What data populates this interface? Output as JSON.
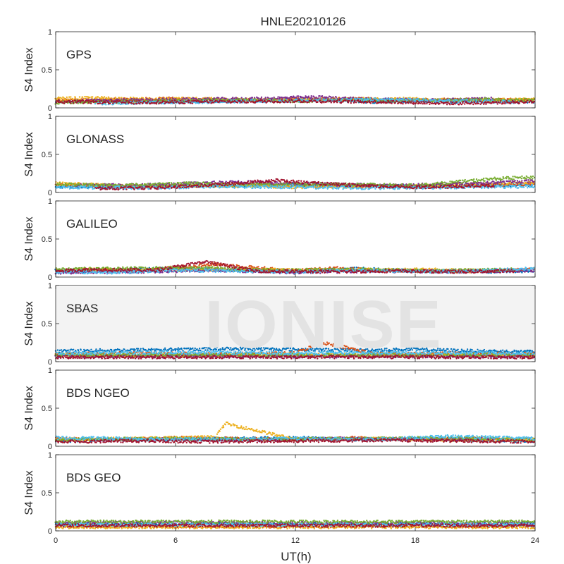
{
  "chart_data": {
    "type": "scatter",
    "title": "HNLE20210126",
    "xlabel": "UT(h)",
    "ylabel": "S4 Index",
    "xlim": [
      0,
      24
    ],
    "ylim": [
      0,
      1
    ],
    "xticks": [
      "0",
      "6",
      "12",
      "18",
      "24"
    ],
    "yticks": [
      "0",
      "0.5",
      "1"
    ],
    "watermark": "IONISE",
    "series_colors": [
      "#0072BD",
      "#D95319",
      "#EDB120",
      "#7E2F8E",
      "#77AC30",
      "#4DBEEE",
      "#A2142F"
    ],
    "panels": [
      {
        "label": "GPS",
        "series": [
          {
            "color": "#0072BD",
            "x": [
              0,
              2,
              4,
              6,
              8,
              10,
              12,
              14,
              16,
              18,
              20,
              22,
              24
            ],
            "y": [
              0.08,
              0.09,
              0.1,
              0.08,
              0.09,
              0.1,
              0.11,
              0.1,
              0.08,
              0.09,
              0.08,
              0.09,
              0.08
            ]
          },
          {
            "color": "#D95319",
            "x": [
              0,
              3,
              6,
              9,
              12,
              15,
              18,
              21,
              24
            ],
            "y": [
              0.1,
              0.11,
              0.12,
              0.1,
              0.11,
              0.12,
              0.1,
              0.11,
              0.1
            ]
          },
          {
            "color": "#EDB120",
            "x": [
              0,
              2,
              5,
              8,
              11,
              14,
              17,
              20,
              24
            ],
            "y": [
              0.12,
              0.13,
              0.11,
              0.12,
              0.1,
              0.11,
              0.12,
              0.1,
              0.11
            ]
          },
          {
            "color": "#7E2F8E",
            "x": [
              1,
              4,
              7,
              10,
              13,
              16,
              19,
              22
            ],
            "y": [
              0.09,
              0.1,
              0.11,
              0.12,
              0.14,
              0.11,
              0.1,
              0.12
            ]
          },
          {
            "color": "#77AC30",
            "x": [
              0,
              3,
              6,
              9,
              12,
              15,
              18,
              21,
              24
            ],
            "y": [
              0.07,
              0.08,
              0.09,
              0.1,
              0.09,
              0.1,
              0.09,
              0.11,
              0.1
            ]
          },
          {
            "color": "#4DBEEE",
            "x": [
              2,
              5,
              8,
              11,
              14,
              17,
              20,
              23
            ],
            "y": [
              0.06,
              0.07,
              0.08,
              0.09,
              0.1,
              0.11,
              0.09,
              0.08
            ]
          },
          {
            "color": "#A2142F",
            "x": [
              0,
              4,
              8,
              12,
              16,
              18,
              20,
              22,
              24
            ],
            "y": [
              0.08,
              0.07,
              0.08,
              0.09,
              0.08,
              0.07,
              0.06,
              0.07,
              0.08
            ]
          }
        ]
      },
      {
        "label": "GLONASS",
        "series": [
          {
            "color": "#0072BD",
            "x": [
              0,
              3,
              6,
              9,
              12,
              15,
              18,
              21,
              24
            ],
            "y": [
              0.08,
              0.07,
              0.09,
              0.08,
              0.1,
              0.09,
              0.08,
              0.09,
              0.1
            ]
          },
          {
            "color": "#D95319",
            "x": [
              0,
              3,
              6,
              9,
              12,
              15,
              18,
              21,
              24
            ],
            "y": [
              0.1,
              0.09,
              0.08,
              0.1,
              0.09,
              0.08,
              0.07,
              0.09,
              0.11
            ]
          },
          {
            "color": "#EDB120",
            "x": [
              0,
              4,
              8,
              12,
              16,
              20,
              24
            ],
            "y": [
              0.12,
              0.08,
              0.09,
              0.07,
              0.08,
              0.1,
              0.13
            ]
          },
          {
            "color": "#7E2F8E",
            "x": [
              1,
              5,
              9,
              13,
              17,
              21,
              24
            ],
            "y": [
              0.09,
              0.1,
              0.14,
              0.11,
              0.09,
              0.12,
              0.15
            ]
          },
          {
            "color": "#77AC30",
            "x": [
              0,
              3,
              7,
              10,
              14,
              18,
              22,
              24
            ],
            "y": [
              0.11,
              0.09,
              0.12,
              0.1,
              0.11,
              0.09,
              0.18,
              0.2
            ]
          },
          {
            "color": "#4DBEEE",
            "x": [
              0,
              4,
              8,
              12,
              16,
              20,
              24
            ],
            "y": [
              0.07,
              0.06,
              0.08,
              0.07,
              0.06,
              0.07,
              0.08
            ]
          },
          {
            "color": "#A2142F",
            "x": [
              2,
              5,
              8,
              11,
              13,
              16,
              19,
              22
            ],
            "y": [
              0.05,
              0.06,
              0.1,
              0.16,
              0.12,
              0.08,
              0.07,
              0.09
            ]
          }
        ]
      },
      {
        "label": "GALILEO",
        "series": [
          {
            "color": "#0072BD",
            "x": [
              0,
              3,
              6,
              9,
              12,
              15,
              18,
              21,
              24
            ],
            "y": [
              0.08,
              0.09,
              0.12,
              0.09,
              0.07,
              0.11,
              0.08,
              0.07,
              0.08
            ]
          },
          {
            "color": "#D95319",
            "x": [
              0,
              4,
              8,
              12,
              14,
              16,
              20,
              24
            ],
            "y": [
              0.09,
              0.08,
              0.17,
              0.08,
              0.12,
              0.09,
              0.07,
              0.1
            ]
          },
          {
            "color": "#EDB120",
            "x": [
              1,
              5,
              9,
              13,
              17,
              21
            ],
            "y": [
              0.1,
              0.09,
              0.1,
              0.09,
              0.1,
              0.09
            ]
          },
          {
            "color": "#7E2F8E",
            "x": [
              0,
              4,
              8,
              12,
              16,
              20,
              24
            ],
            "y": [
              0.06,
              0.07,
              0.09,
              0.06,
              0.08,
              0.07,
              0.09
            ]
          },
          {
            "color": "#77AC30",
            "x": [
              0,
              3,
              7,
              11,
              15,
              19,
              23
            ],
            "y": [
              0.1,
              0.11,
              0.12,
              0.09,
              0.1,
              0.08,
              0.1
            ]
          },
          {
            "color": "#4DBEEE",
            "x": [
              0,
              3,
              6,
              9,
              12,
              15,
              18,
              21,
              24
            ],
            "y": [
              0.07,
              0.06,
              0.09,
              0.08,
              0.07,
              0.09,
              0.07,
              0.08,
              0.11
            ]
          },
          {
            "color": "#A2142F",
            "x": [
              0,
              2,
              5,
              7.5,
              10,
              14,
              17,
              20,
              23
            ],
            "y": [
              0.08,
              0.1,
              0.09,
              0.2,
              0.08,
              0.07,
              0.08,
              0.07,
              0.08
            ]
          }
        ]
      },
      {
        "label": "SBAS",
        "series": [
          {
            "color": "#0072BD",
            "x": [
              0,
              3,
              6,
              9,
              12,
              15,
              18,
              21,
              24
            ],
            "y": [
              0.14,
              0.15,
              0.16,
              0.17,
              0.16,
              0.15,
              0.16,
              0.14,
              0.13
            ]
          },
          {
            "color": "#D95319",
            "x": [
              0,
              4,
              8,
              12,
              13.3,
              14.3,
              16,
              20,
              24
            ],
            "y": [
              0.1,
              0.11,
              0.1,
              0.11,
              0.25,
              0.2,
              0.1,
              0.11,
              0.1
            ]
          },
          {
            "color": "#EDB120",
            "x": [
              0,
              6,
              12,
              18,
              24
            ],
            "y": [
              0.08,
              0.08,
              0.09,
              0.08,
              0.08
            ]
          },
          {
            "color": "#7E2F8E",
            "x": [
              0,
              6,
              12,
              18,
              24
            ],
            "y": [
              0.07,
              0.07,
              0.07,
              0.07,
              0.07
            ]
          },
          {
            "color": "#77AC30",
            "x": [
              0,
              6,
              12,
              18,
              24
            ],
            "y": [
              0.09,
              0.09,
              0.09,
              0.09,
              0.09
            ]
          },
          {
            "color": "#4DBEEE",
            "x": [
              0,
              6,
              12,
              18,
              24
            ],
            "y": [
              0.11,
              0.12,
              0.11,
              0.12,
              0.11
            ]
          },
          {
            "color": "#A2142F",
            "x": [
              0,
              4,
              8,
              12,
              16,
              20,
              24
            ],
            "y": [
              0.06,
              0.06,
              0.06,
              0.06,
              0.06,
              0.06,
              0.06
            ]
          }
        ]
      },
      {
        "label": "BDS NGEO",
        "series": [
          {
            "color": "#0072BD",
            "x": [
              0,
              3,
              6,
              9,
              12,
              15,
              18,
              21,
              24
            ],
            "y": [
              0.07,
              0.08,
              0.09,
              0.1,
              0.11,
              0.09,
              0.1,
              0.08,
              0.07
            ]
          },
          {
            "color": "#D95319",
            "x": [
              0,
              3,
              6,
              9,
              12,
              15,
              18,
              21,
              24
            ],
            "y": [
              0.1,
              0.09,
              0.11,
              0.1,
              0.09,
              0.11,
              0.09,
              0.1,
              0.09
            ]
          },
          {
            "color": "#EDB120",
            "x": [
              0,
              4,
              8,
              8.5,
              12,
              16,
              20,
              24
            ],
            "y": [
              0.09,
              0.1,
              0.12,
              0.3,
              0.09,
              0.1,
              0.08,
              0.09
            ]
          },
          {
            "color": "#7E2F8E",
            "x": [
              2,
              6,
              10,
              14,
              18,
              22
            ],
            "y": [
              0.08,
              0.09,
              0.08,
              0.1,
              0.09,
              0.1
            ]
          },
          {
            "color": "#77AC30",
            "x": [
              0,
              5,
              10,
              15,
              20,
              24
            ],
            "y": [
              0.09,
              0.1,
              0.09,
              0.1,
              0.11,
              0.09
            ]
          },
          {
            "color": "#4DBEEE",
            "x": [
              0,
              4,
              8,
              12,
              16,
              19.5,
              24
            ],
            "y": [
              0.11,
              0.1,
              0.09,
              0.1,
              0.09,
              0.13,
              0.1
            ]
          },
          {
            "color": "#A2142F",
            "x": [
              0,
              4,
              8,
              12,
              16,
              20,
              24
            ],
            "y": [
              0.06,
              0.07,
              0.06,
              0.07,
              0.08,
              0.07,
              0.06
            ]
          }
        ]
      },
      {
        "label": "BDS GEO",
        "series": [
          {
            "color": "#0072BD",
            "x": [
              0,
              6,
              12,
              18,
              24
            ],
            "y": [
              0.09,
              0.09,
              0.09,
              0.09,
              0.09
            ]
          },
          {
            "color": "#D95319",
            "x": [
              0,
              6,
              12,
              18,
              24
            ],
            "y": [
              0.06,
              0.06,
              0.06,
              0.06,
              0.06
            ]
          },
          {
            "color": "#EDB120",
            "x": [
              0,
              6,
              12,
              18,
              24
            ],
            "y": [
              0.05,
              0.05,
              0.05,
              0.05,
              0.05
            ]
          },
          {
            "color": "#7E2F8E",
            "x": [
              0,
              6,
              12,
              18,
              24
            ],
            "y": [
              0.1,
              0.11,
              0.1,
              0.1,
              0.1
            ]
          },
          {
            "color": "#77AC30",
            "x": [
              0,
              6,
              12,
              18,
              24
            ],
            "y": [
              0.12,
              0.12,
              0.12,
              0.12,
              0.12
            ]
          },
          {
            "color": "#4DBEEE",
            "x": [
              0,
              6,
              12,
              18,
              24
            ],
            "y": [
              0.08,
              0.08,
              0.08,
              0.08,
              0.08
            ]
          },
          {
            "color": "#A2142F",
            "x": [
              0,
              6,
              12,
              18,
              24
            ],
            "y": [
              0.07,
              0.07,
              0.07,
              0.07,
              0.07
            ]
          }
        ]
      }
    ]
  }
}
